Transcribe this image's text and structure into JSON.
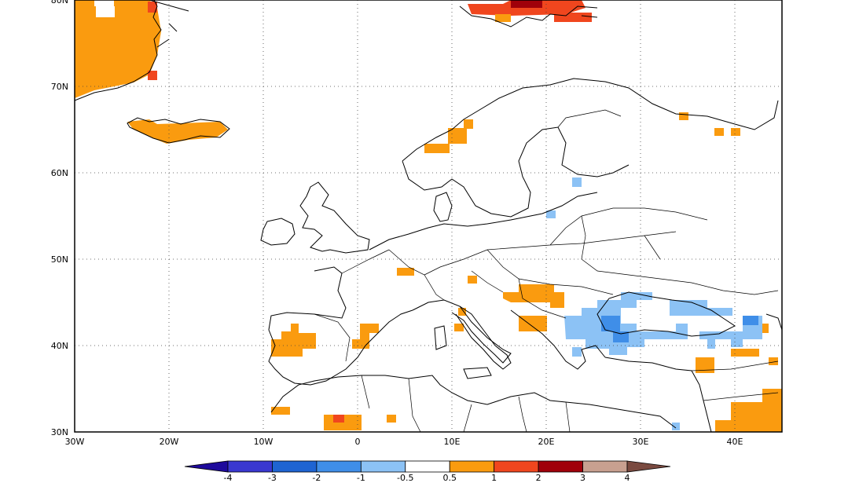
{
  "map": {
    "lat_ticks": [
      "30N",
      "40N",
      "50N",
      "60N",
      "70N",
      "80N"
    ],
    "lon_ticks": [
      "30W",
      "20W",
      "10W",
      "0",
      "10E",
      "20E",
      "30E",
      "40E"
    ],
    "extent": {
      "lon": [
        -30,
        45
      ],
      "lat": [
        30,
        80
      ]
    },
    "grid_style": "dotted"
  },
  "colorbar": {
    "labels": [
      "-4",
      "-3",
      "-2",
      "-1",
      "-0.5",
      "0.5",
      "1",
      "2",
      "3",
      "4"
    ],
    "colors": [
      "#1e0a9c",
      "#3a38d0",
      "#1e64d2",
      "#3f8ee8",
      "#8cc2f5",
      "#ffffff",
      "#fa9b0f",
      "#f0461e",
      "#a0000a",
      "#c8a090",
      "#7a4a40"
    ]
  }
}
